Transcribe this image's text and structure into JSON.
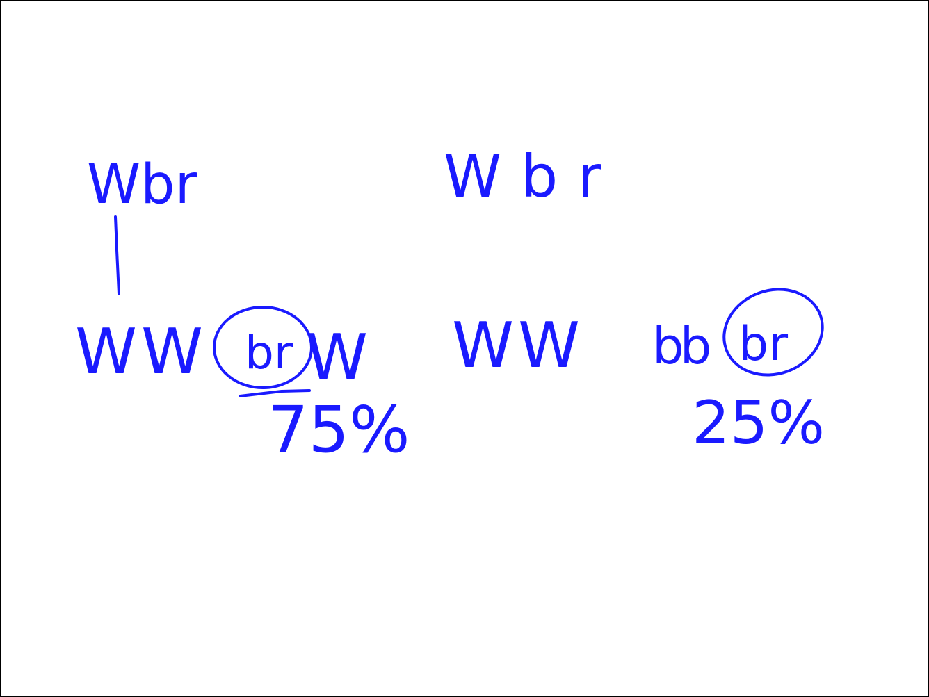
{
  "notes": {
    "top_left": "Wbr",
    "top_right": "Wbr",
    "left_genotypes": "WW",
    "left_circled": "br",
    "left_tail": "W",
    "left_percent": "75%",
    "right_genotypes": "WW",
    "right_middle": "bb",
    "right_circled": "br",
    "right_percent": "25%"
  }
}
